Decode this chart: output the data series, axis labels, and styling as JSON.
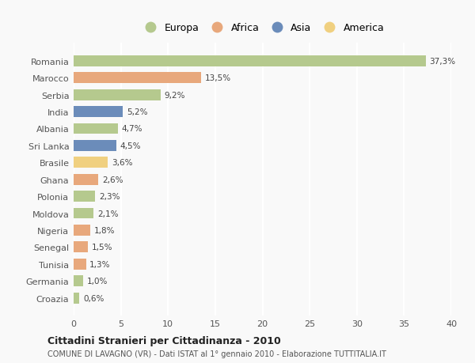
{
  "countries": [
    "Romania",
    "Marocco",
    "Serbia",
    "India",
    "Albania",
    "Sri Lanka",
    "Brasile",
    "Ghana",
    "Polonia",
    "Moldova",
    "Nigeria",
    "Senegal",
    "Tunisia",
    "Germania",
    "Croazia"
  ],
  "values": [
    37.3,
    13.5,
    9.2,
    5.2,
    4.7,
    4.5,
    3.6,
    2.6,
    2.3,
    2.1,
    1.8,
    1.5,
    1.3,
    1.0,
    0.6
  ],
  "labels": [
    "37,3%",
    "13,5%",
    "9,2%",
    "5,2%",
    "4,7%",
    "4,5%",
    "3,6%",
    "2,6%",
    "2,3%",
    "2,1%",
    "1,8%",
    "1,5%",
    "1,3%",
    "1,0%",
    "0,6%"
  ],
  "continents": [
    "Europa",
    "Africa",
    "Europa",
    "Asia",
    "Europa",
    "Asia",
    "America",
    "Africa",
    "Europa",
    "Europa",
    "Africa",
    "Africa",
    "Africa",
    "Europa",
    "Europa"
  ],
  "continent_colors": {
    "Europa": "#b5c98e",
    "Africa": "#e8a87c",
    "Asia": "#6b8cba",
    "America": "#f0d080"
  },
  "legend_order": [
    "Europa",
    "Africa",
    "Asia",
    "America"
  ],
  "title": "Cittadini Stranieri per Cittadinanza - 2010",
  "subtitle": "COMUNE DI LAVAGNO (VR) - Dati ISTAT al 1° gennaio 2010 - Elaborazione TUTTITALIA.IT",
  "xlim": [
    0,
    40
  ],
  "xticks": [
    0,
    5,
    10,
    15,
    20,
    25,
    30,
    35,
    40
  ],
  "background_color": "#f9f9f9",
  "grid_color": "#ffffff",
  "bar_height": 0.65
}
